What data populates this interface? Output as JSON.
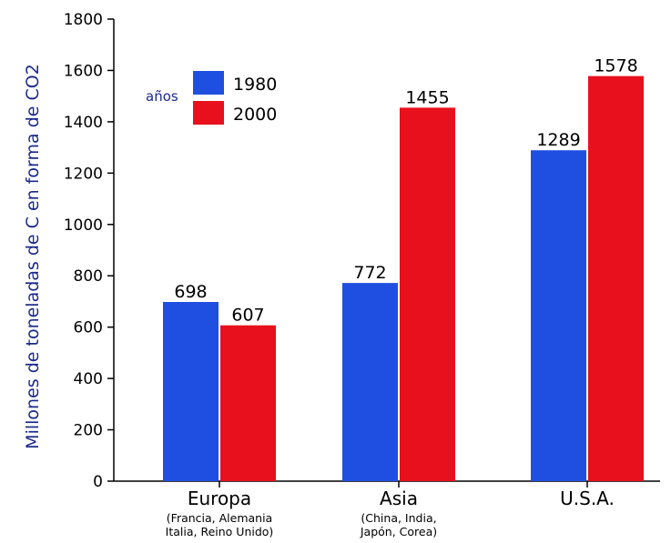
{
  "chart_data": {
    "type": "bar",
    "categories": [
      "Europa",
      "Asia",
      "U.S.A."
    ],
    "category_sublabels": [
      [
        "(Francia, Alemania",
        "Italia, Reino Unido)"
      ],
      [
        "(China, India,",
        "Japón, Corea)"
      ],
      []
    ],
    "series": [
      {
        "name": "1980",
        "values": [
          698,
          772,
          1289
        ],
        "color": "#1f4fe0"
      },
      {
        "name": "2000",
        "values": [
          607,
          1455,
          1578
        ],
        "color": "#e8101c"
      }
    ],
    "ylabel": "Millones de toneladas de C en forma de CO2",
    "ylim": [
      0,
      1800
    ],
    "yticks": [
      0,
      200,
      400,
      600,
      800,
      1000,
      1200,
      1400,
      1600,
      1800
    ],
    "legend_title": "años",
    "legend_position": "top-left",
    "grid": false
  }
}
